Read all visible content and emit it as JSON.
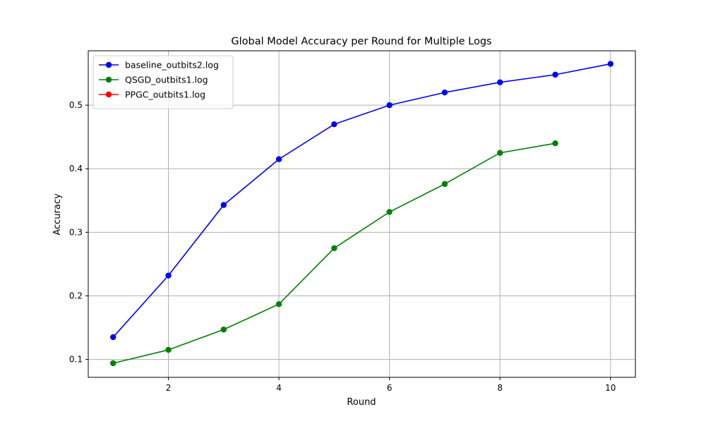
{
  "chart_data": {
    "type": "line",
    "title": "Global Model Accuracy per Round for Multiple Logs",
    "xlabel": "Round",
    "ylabel": "Accuracy",
    "xlim": [
      0.55,
      10.45
    ],
    "ylim": [
      0.0718,
      0.5856
    ],
    "xticks": [
      2,
      4,
      6,
      8,
      10
    ],
    "yticks": [
      0.1,
      0.2,
      0.3,
      0.4,
      0.5
    ],
    "grid": true,
    "legend_position": "upper-left",
    "series": [
      {
        "name": "baseline_outbits2.log",
        "color": "#0000ff",
        "x": [
          1,
          2,
          3,
          4,
          5,
          6,
          7,
          8,
          9,
          10
        ],
        "y": [
          0.135,
          0.232,
          0.343,
          0.415,
          0.47,
          0.5,
          0.52,
          0.536,
          0.548,
          0.565
        ]
      },
      {
        "name": "QSGD_outbits1.log",
        "color": "#008000",
        "x": [
          1,
          2,
          3,
          4,
          5,
          6,
          7,
          8,
          9
        ],
        "y": [
          0.094,
          0.115,
          0.147,
          0.187,
          0.275,
          0.332,
          0.376,
          0.425,
          0.44
        ]
      },
      {
        "name": "PPGC_outbits1.log",
        "color": "#ff0000",
        "x": [],
        "y": []
      }
    ]
  }
}
